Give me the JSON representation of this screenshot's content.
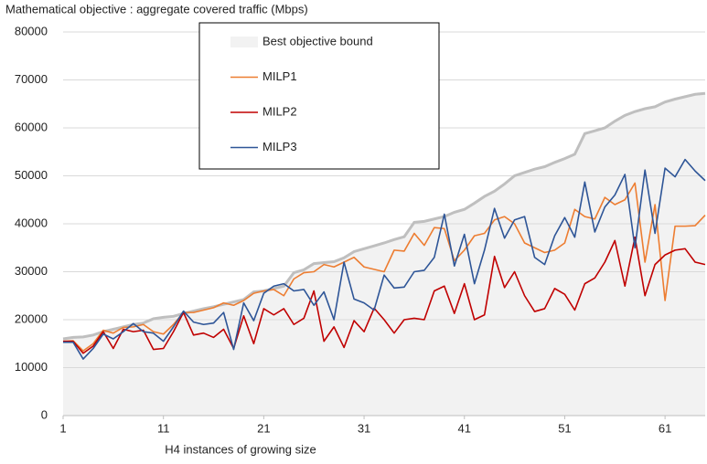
{
  "chart_data": {
    "type": "line",
    "title": "Mathematical objective : aggregate covered traffic (Mbps)",
    "x_label": "H4 instances of growing size",
    "x": [
      1,
      2,
      3,
      4,
      5,
      6,
      7,
      8,
      9,
      10,
      11,
      12,
      13,
      14,
      15,
      16,
      17,
      18,
      19,
      20,
      21,
      22,
      23,
      24,
      25,
      26,
      27,
      28,
      29,
      30,
      31,
      32,
      33,
      34,
      35,
      36,
      37,
      38,
      39,
      40,
      41,
      42,
      43,
      44,
      45,
      46,
      47,
      48,
      49,
      50,
      51,
      52,
      53,
      54,
      55,
      56,
      57,
      58,
      59,
      60,
      61,
      62,
      63,
      64,
      65
    ],
    "xlim": [
      1,
      65
    ],
    "xticks": [
      1,
      11,
      21,
      31,
      41,
      51,
      61
    ],
    "ylim": [
      0,
      80000
    ],
    "yticks": [
      0,
      10000,
      20000,
      30000,
      40000,
      50000,
      60000,
      70000,
      80000
    ],
    "grid": true,
    "series": [
      {
        "name": "Best objective bound",
        "type": "area",
        "color": "#bfbfbf",
        "fill": "#f2f2f2",
        "values": [
          16000,
          16300,
          16400,
          16800,
          17500,
          18000,
          18500,
          19000,
          19300,
          20200,
          20500,
          20700,
          21300,
          21800,
          22300,
          22700,
          23200,
          23700,
          24200,
          25800,
          26000,
          26500,
          27000,
          29800,
          30400,
          31700,
          31900,
          32100,
          32900,
          34200,
          34800,
          35400,
          36000,
          36700,
          37300,
          40300,
          40500,
          41000,
          41500,
          42400,
          43000,
          44300,
          45700,
          46800,
          48300,
          50000,
          50700,
          51400,
          51900,
          52800,
          53600,
          54500,
          58800,
          59400,
          60000,
          61400,
          62600,
          63400,
          64000,
          64400,
          65400,
          66000,
          66500,
          67000,
          67200
        ]
      },
      {
        "name": "MILP1",
        "type": "line",
        "color": "#ed7d31",
        "values": [
          15500,
          15600,
          13500,
          15000,
          17800,
          17200,
          18400,
          18500,
          19000,
          17500,
          17000,
          19000,
          21500,
          21500,
          22000,
          22500,
          23500,
          23000,
          24000,
          25500,
          26000,
          26300,
          25000,
          28500,
          29800,
          30000,
          31500,
          31000,
          32000,
          33000,
          31000,
          30500,
          30000,
          34500,
          34300,
          38000,
          35500,
          39200,
          39000,
          32300,
          34500,
          37500,
          38000,
          40800,
          41500,
          40000,
          36000,
          35000,
          34000,
          34500,
          36000,
          43000,
          41500,
          41000,
          45500,
          44000,
          45000,
          48500,
          32000,
          44000,
          24000,
          39500,
          39500,
          39600,
          41800
        ]
      },
      {
        "name": "MILP2",
        "type": "line",
        "color": "#c00000",
        "values": [
          15500,
          15500,
          13000,
          14500,
          17500,
          14000,
          18000,
          17500,
          17800,
          13800,
          14000,
          17500,
          21500,
          16800,
          17200,
          16300,
          18000,
          14000,
          20800,
          15000,
          22300,
          21000,
          22300,
          19000,
          20300,
          26000,
          15500,
          18500,
          14200,
          19800,
          17500,
          22400,
          20000,
          17200,
          20000,
          20300,
          20000,
          26000,
          27000,
          21300,
          27500,
          20000,
          21000,
          33200,
          26700,
          30000,
          25000,
          21700,
          22300,
          26500,
          25300,
          22000,
          27500,
          28700,
          32000,
          36500,
          27000,
          37200,
          25000,
          31500,
          33500,
          34500,
          34800,
          32000,
          31500
        ]
      },
      {
        "name": "MILP3",
        "type": "line",
        "color": "#2e5597",
        "values": [
          15300,
          15300,
          11800,
          14000,
          17000,
          16000,
          17500,
          19200,
          17500,
          17200,
          15500,
          18500,
          21800,
          19500,
          19000,
          19300,
          21500,
          13800,
          23500,
          19800,
          25500,
          27000,
          27500,
          26000,
          26300,
          23000,
          25800,
          20000,
          32000,
          24300,
          23500,
          22000,
          29300,
          26600,
          26800,
          30000,
          30300,
          33000,
          42000,
          31200,
          37800,
          27500,
          34500,
          43200,
          37000,
          40800,
          41500,
          33000,
          31500,
          37500,
          41300,
          37200,
          48700,
          38300,
          43500,
          46000,
          50300,
          35000,
          51200,
          38000,
          51600,
          49800,
          53400,
          51000,
          49000
        ]
      }
    ]
  }
}
